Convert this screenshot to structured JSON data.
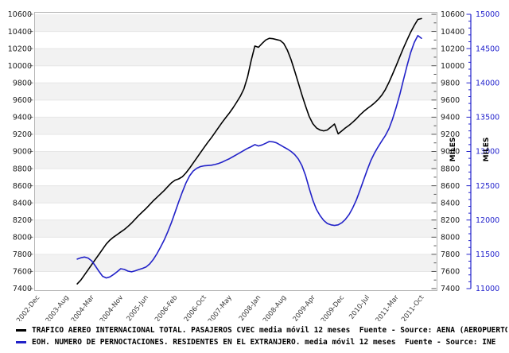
{
  "chart_data": {
    "type": "line",
    "x_unit": "month",
    "x_range_start": "2002-12",
    "x_range_end": "2011-10",
    "x_total_months": 106,
    "x_tick_labels": [
      "2002-Dec",
      "2003-Aug",
      "2004-Mar",
      "2004-Nov",
      "2005-Jun",
      "2006-Feb",
      "2006-Oct",
      "2007-May",
      "2008-Jan",
      "2008-Aug",
      "2009-Apr",
      "2009-Dec",
      "2010-Jul",
      "2011-Mar",
      "2011-Oct"
    ],
    "x_tick_month_offsets": [
      0,
      8,
      15,
      23,
      30,
      38,
      46,
      53,
      61,
      68,
      76,
      84,
      91,
      99,
      106
    ],
    "series_start_month": "2003-11",
    "series_start_month_offset": 11,
    "left_axis": {
      "label": "MILES",
      "min": 7400,
      "max": 10600,
      "major_step": 200,
      "minor_step": 100,
      "color": "#000000"
    },
    "right_axis_inner": {
      "label": "MILES",
      "min": 7400,
      "max": 10600,
      "major_step": 200,
      "minor_step": 100,
      "color": "#000000"
    },
    "right_axis_outer": {
      "label": "MILES",
      "min": 11000,
      "max": 15000,
      "major_step": 500,
      "minor_step": 100,
      "color": "#2222cc"
    },
    "series": [
      {
        "name": "TRAFICO AEREO INTERNACIONAL TOTAL. PASAJEROS CVEC media móvil 12 meses",
        "source": "Fuente - Source: AENA (AEROPUERTOS",
        "axis": "left",
        "color": "#000000",
        "values": [
          7455,
          7500,
          7560,
          7620,
          7680,
          7740,
          7800,
          7860,
          7920,
          7965,
          8000,
          8030,
          8060,
          8090,
          8125,
          8165,
          8210,
          8255,
          8295,
          8335,
          8380,
          8425,
          8465,
          8505,
          8545,
          8590,
          8635,
          8665,
          8680,
          8705,
          8750,
          8805,
          8865,
          8925,
          8985,
          9045,
          9105,
          9160,
          9220,
          9280,
          9340,
          9395,
          9450,
          9510,
          9575,
          9645,
          9730,
          9870,
          10060,
          10230,
          10215,
          10260,
          10300,
          10320,
          10315,
          10305,
          10295,
          10260,
          10180,
          10070,
          9940,
          9800,
          9660,
          9530,
          9410,
          9325,
          9275,
          9250,
          9240,
          9250,
          9285,
          9320,
          9205,
          9240,
          9275,
          9305,
          9340,
          9380,
          9425,
          9465,
          9500,
          9530,
          9565,
          9605,
          9655,
          9720,
          9805,
          9900,
          10000,
          10105,
          10205,
          10300,
          10390,
          10470,
          10540,
          10550
        ]
      },
      {
        "name": "EOH. NUMERO DE PERNOCTACIONES. RESIDENTES EN EL EXTRANJERO. media móvil 12 meses",
        "source": "Fuente - Source: INE",
        "axis": "right",
        "color": "#2222c8",
        "values": [
          11430,
          11450,
          11460,
          11445,
          11405,
          11330,
          11250,
          11180,
          11155,
          11170,
          11205,
          11245,
          11290,
          11280,
          11255,
          11245,
          11260,
          11278,
          11295,
          11315,
          11360,
          11425,
          11510,
          11605,
          11710,
          11830,
          11965,
          12115,
          12265,
          12410,
          12540,
          12645,
          12715,
          12755,
          12780,
          12790,
          12795,
          12800,
          12810,
          12825,
          12845,
          12870,
          12895,
          12925,
          12955,
          12985,
          13015,
          13045,
          13070,
          13100,
          13080,
          13095,
          13120,
          13145,
          13140,
          13125,
          13095,
          13065,
          13035,
          13000,
          12955,
          12890,
          12795,
          12650,
          12465,
          12290,
          12155,
          12065,
          11995,
          11950,
          11930,
          11920,
          11930,
          11960,
          12010,
          12080,
          12175,
          12290,
          12430,
          12580,
          12730,
          12865,
          12975,
          13065,
          13150,
          13230,
          13330,
          13470,
          13640,
          13830,
          14040,
          14250,
          14440,
          14590,
          14690,
          14650
        ]
      }
    ],
    "legend": [
      {
        "label": "TRAFICO AEREO INTERNACIONAL TOTAL. PASAJEROS CVEC media móvil 12 meses  Fuente - Source: AENA (AEROPUERTOS",
        "color": "#000000"
      },
      {
        "label": "EOH. NUMERO DE PERNOCTACIONES. RESIDENTES EN EL EXTRANJERO. media móvil 12 meses  Fuente - Source: INE",
        "color": "#2222c8"
      }
    ],
    "style": {
      "band_color": "#f2f2f2",
      "gridline_color": "#e6e6e6",
      "frame_color": "#b5b5b5",
      "blue_axis_color": "#2222cc"
    }
  }
}
